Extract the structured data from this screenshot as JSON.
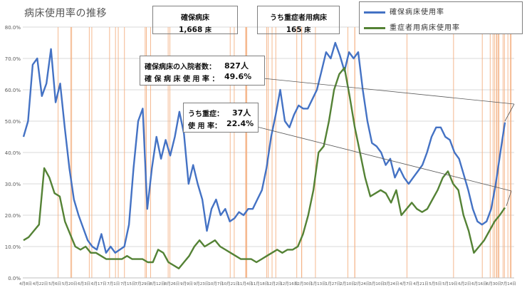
{
  "title": "病床使用率の推移",
  "box_secure": {
    "label": "確保病床",
    "value": "1,668",
    "unit": "床"
  },
  "box_severe": {
    "label": "うち重症者用病床",
    "value": "165",
    "unit": "床"
  },
  "callout_main": {
    "row1_label": "確保病床の入院者数：",
    "row1_value": "827人",
    "row2_label": "確 保 病 床 使 用 率 ：",
    "row2_value": "49.6%"
  },
  "callout_severe": {
    "row1_label": "うち重症：",
    "row1_value": "37人",
    "row2_label": "使 用 率：",
    "row2_value": "22.4%"
  },
  "colors": {
    "secure": "#4472c4",
    "severe": "#548235",
    "vline": "#f4b183",
    "grid": "#d9d9d9",
    "box_secure_bg": "#dae3f3",
    "box_severe_bg": "#e2efda"
  },
  "chart_data": {
    "type": "line",
    "ylim": [
      0,
      80
    ],
    "yticks": [
      "0.0%",
      "10.0%",
      "20.0%",
      "30.0%",
      "40.0%",
      "50.0%",
      "60.0%",
      "70.0%",
      "80.0%"
    ],
    "xlabel": "",
    "ylabel": "",
    "grid": true,
    "legend": "top-right",
    "x_tick_labels": [
      "4月8日",
      "4月22日",
      "5月6日",
      "5月20日",
      "6月3日",
      "6月17日",
      "7月1日",
      "7月15日",
      "7月29日",
      "8月12日",
      "8月26日",
      "9月9日",
      "9月23日",
      "10月7日",
      "10月21日",
      "11月4日",
      "11月18日",
      "12月2日",
      "12月16日",
      "12月30日",
      "1月13日",
      "1月27日",
      "2月10日",
      "2月24日",
      "3月10日",
      "3月24日",
      "4月7日",
      "4月21日",
      "5月5日",
      "5月19日",
      "6月2日",
      "6月16日",
      "6月30日",
      "7月14日"
    ],
    "series": [
      {
        "name": "確保病床使用率",
        "color": "#4472c4",
        "values": [
          45,
          50,
          68,
          70,
          58,
          62,
          73,
          56,
          62,
          48,
          35,
          25,
          20,
          16,
          12,
          10,
          9,
          14,
          8,
          10,
          8,
          9,
          10,
          17,
          35,
          50,
          54,
          22,
          35,
          45,
          38,
          44,
          39,
          45,
          53,
          46,
          30,
          36,
          30,
          25,
          15,
          22,
          25,
          20,
          22,
          18,
          19,
          21,
          20,
          22,
          22,
          25,
          28,
          35,
          45,
          52,
          60,
          50,
          48,
          52,
          55,
          54,
          54,
          57,
          60,
          66,
          72,
          70,
          75,
          71,
          66,
          72,
          70,
          72,
          60,
          50,
          43,
          42,
          40,
          36,
          38,
          32,
          35,
          32,
          30,
          32,
          34,
          36,
          40,
          45,
          48,
          48,
          45,
          44,
          40,
          38,
          33,
          28,
          22,
          18,
          17,
          18,
          22,
          30,
          40,
          49.6
        ]
      },
      {
        "name": "重症者用病床使用率",
        "color": "#548235",
        "values": [
          12,
          13,
          15,
          17,
          35,
          32,
          27,
          26,
          18,
          14,
          10,
          9,
          10,
          8,
          8,
          7,
          6,
          6,
          6,
          6,
          7,
          6,
          6,
          6,
          5,
          5,
          9,
          8,
          5,
          4,
          3,
          5,
          7,
          10,
          12,
          10,
          11,
          12,
          10,
          9,
          8,
          7,
          6,
          6,
          6,
          5,
          6,
          7,
          8,
          9,
          8,
          9,
          9,
          10,
          14,
          20,
          28,
          40,
          42,
          50,
          60,
          65,
          67,
          58,
          48,
          40,
          32,
          26,
          27,
          28,
          27,
          24,
          28,
          20,
          22,
          24,
          22,
          21,
          22,
          25,
          28,
          32,
          34,
          30,
          28,
          20,
          15,
          8,
          10,
          12,
          15,
          18,
          20,
          22.4
        ]
      }
    ]
  }
}
